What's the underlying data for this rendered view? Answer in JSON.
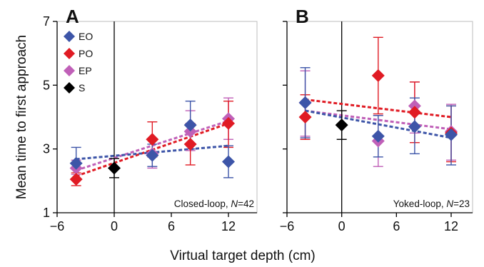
{
  "chart_data": {
    "type": "scatter",
    "ylabel": "Mean time to first approach",
    "xlabel": "Virtual target depth (cm)",
    "legend": {
      "placement": "top-left",
      "entries": [
        {
          "name": "EO",
          "color": "#3d55a8"
        },
        {
          "name": "PO",
          "color": "#e01b24"
        },
        {
          "name": "EP",
          "color": "#c060b8"
        },
        {
          "name": "S",
          "color": "#000000"
        }
      ]
    },
    "panels": [
      {
        "letter": "A",
        "annotation_prefix": "Closed-loop, ",
        "annotation_n": "N",
        "annotation_value": "=42",
        "xlim": [
          -6,
          13.5
        ],
        "ylim": [
          1,
          7
        ],
        "xticks": [
          -6,
          0,
          6,
          12
        ],
        "xtick_labels": [
          "−6",
          "0",
          "6",
          "12"
        ],
        "yticks": [
          1,
          3,
          5,
          7
        ],
        "ytick_labels": [
          "1",
          "3",
          "5",
          "7"
        ],
        "series": [
          {
            "name": "EP",
            "color": "#c060b8",
            "points": [
              {
                "x": -4,
                "y": 2.4,
                "lo": 2.2,
                "hi": 2.65
              },
              {
                "x": 4,
                "y": 2.85,
                "lo": 2.4,
                "hi": 3.3
              },
              {
                "x": 8,
                "y": 3.55,
                "lo": 2.95,
                "hi": 4.2
              },
              {
                "x": 12,
                "y": 3.95,
                "lo": 3.3,
                "hi": 4.6
              }
            ],
            "fit": {
              "x": [
                -4,
                12
              ],
              "y": [
                2.33,
                3.88
              ]
            }
          },
          {
            "name": "PO",
            "color": "#e01b24",
            "points": [
              {
                "x": -4,
                "y": 2.05,
                "lo": 1.85,
                "hi": 2.25
              },
              {
                "x": 4,
                "y": 3.3,
                "lo": 2.75,
                "hi": 3.85
              },
              {
                "x": 8,
                "y": 3.15,
                "lo": 2.5,
                "hi": 3.8
              },
              {
                "x": 12,
                "y": 3.8,
                "lo": 3.05,
                "hi": 4.5
              }
            ],
            "fit": {
              "x": [
                -4,
                12
              ],
              "y": [
                2.15,
                3.8
              ]
            }
          },
          {
            "name": "EO",
            "color": "#3d55a8",
            "points": [
              {
                "x": -4,
                "y": 2.55,
                "lo": 2.05,
                "hi": 3.05
              },
              {
                "x": 4,
                "y": 2.8,
                "lo": 2.45,
                "hi": 3.15
              },
              {
                "x": 8,
                "y": 3.75,
                "lo": 3.0,
                "hi": 4.5
              },
              {
                "x": 12,
                "y": 2.6,
                "lo": 2.1,
                "hi": 3.1
              }
            ],
            "fit": {
              "x": [
                -4,
                12
              ],
              "y": [
                2.68,
                3.1
              ]
            }
          },
          {
            "name": "S",
            "color": "#000000",
            "points": [
              {
                "x": 0,
                "y": 2.4,
                "lo": 2.1,
                "hi": 2.7
              }
            ],
            "fit": null
          }
        ]
      },
      {
        "letter": "B",
        "annotation_prefix": "Yoked-loop, ",
        "annotation_n": "N",
        "annotation_value": "=23",
        "xlim": [
          -6,
          13.5
        ],
        "ylim": [
          1,
          7
        ],
        "xticks": [
          -6,
          0,
          6,
          12
        ],
        "xtick_labels": [
          "−6",
          "0",
          "6",
          "12"
        ],
        "yticks": [
          1,
          3,
          5,
          7
        ],
        "ytick_labels": [
          "",
          "",
          "",
          ""
        ],
        "series": [
          {
            "name": "EP",
            "color": "#c060b8",
            "points": [
              {
                "x": -4,
                "y": 4.45,
                "lo": 3.4,
                "hi": 5.45
              },
              {
                "x": 4,
                "y": 3.25,
                "lo": 2.45,
                "hi": 4.05
              },
              {
                "x": 8,
                "y": 4.35,
                "lo": 3.5,
                "hi": 5.1
              },
              {
                "x": 12,
                "y": 3.55,
                "lo": 2.65,
                "hi": 4.4
              }
            ],
            "fit": {
              "x": [
                -4,
                12
              ],
              "y": [
                4.2,
                3.62
              ]
            }
          },
          {
            "name": "PO",
            "color": "#e01b24",
            "points": [
              {
                "x": -4,
                "y": 4.0,
                "lo": 3.3,
                "hi": 4.7
              },
              {
                "x": 4,
                "y": 5.3,
                "lo": 4.1,
                "hi": 6.5
              },
              {
                "x": 8,
                "y": 4.15,
                "lo": 3.2,
                "hi": 5.1
              },
              {
                "x": 12,
                "y": 3.5,
                "lo": 2.6,
                "hi": 4.35
              }
            ],
            "fit": {
              "x": [
                -4,
                12
              ],
              "y": [
                4.55,
                4.0
              ]
            }
          },
          {
            "name": "EO",
            "color": "#3d55a8",
            "points": [
              {
                "x": -4,
                "y": 4.45,
                "lo": 3.35,
                "hi": 5.55
              },
              {
                "x": 4,
                "y": 3.4,
                "lo": 2.75,
                "hi": 4.05
              },
              {
                "x": 8,
                "y": 3.7,
                "lo": 2.85,
                "hi": 4.6
              },
              {
                "x": 12,
                "y": 3.45,
                "lo": 2.5,
                "hi": 4.35
              }
            ],
            "fit": {
              "x": [
                -4,
                12
              ],
              "y": [
                4.2,
                3.35
              ]
            }
          },
          {
            "name": "S",
            "color": "#000000",
            "points": [
              {
                "x": 0,
                "y": 3.75,
                "lo": 3.3,
                "hi": 4.2
              }
            ],
            "fit": null
          }
        ]
      }
    ]
  }
}
